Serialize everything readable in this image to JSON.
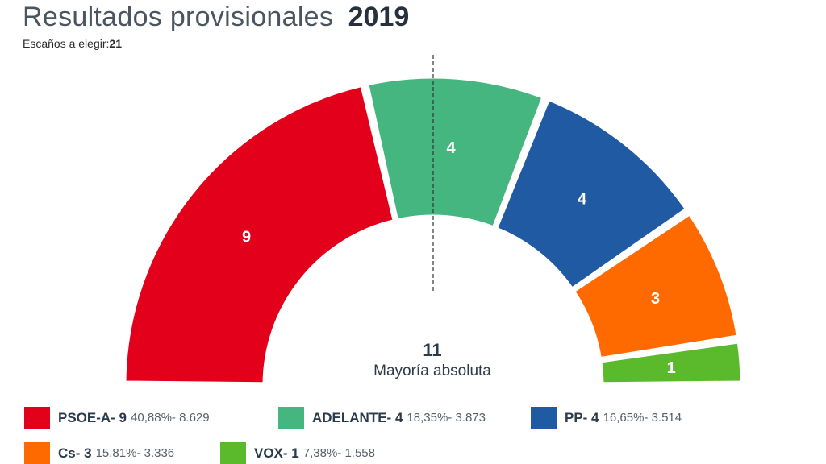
{
  "header": {
    "title": "Resultados provisionales",
    "year": "2019",
    "seats_label": "Escaños a elegir:",
    "seats_value": "21"
  },
  "majority": {
    "value": "11",
    "label": "Mayoría absoluta"
  },
  "chart_data": {
    "type": "pie",
    "variant": "hemicycle",
    "title": "Resultados provisionales 2019",
    "total_seats": 21,
    "majority": 11,
    "categories": [
      "PSOE-A",
      "ADELANTE",
      "PP",
      "Cs",
      "VOX"
    ],
    "values": [
      9,
      4,
      4,
      3,
      1
    ],
    "colors": [
      "#e2001a",
      "#45b680",
      "#1f5aa3",
      "#ff6a00",
      "#5aba2c"
    ],
    "legend": [
      {
        "party": "PSOE-A- 9",
        "stats": "40,88%- 8.629",
        "color": "#e2001a"
      },
      {
        "party": "ADELANTE- 4",
        "stats": "18,35%- 3.873",
        "color": "#45b680"
      },
      {
        "party": "PP- 4",
        "stats": "16,65%- 3.514",
        "color": "#1f5aa3"
      },
      {
        "party": "Cs- 3",
        "stats": "15,81%- 3.336",
        "color": "#ff6a00"
      },
      {
        "party": "VOX- 1",
        "stats": "7,38%- 1.558",
        "color": "#5aba2c"
      }
    ]
  }
}
